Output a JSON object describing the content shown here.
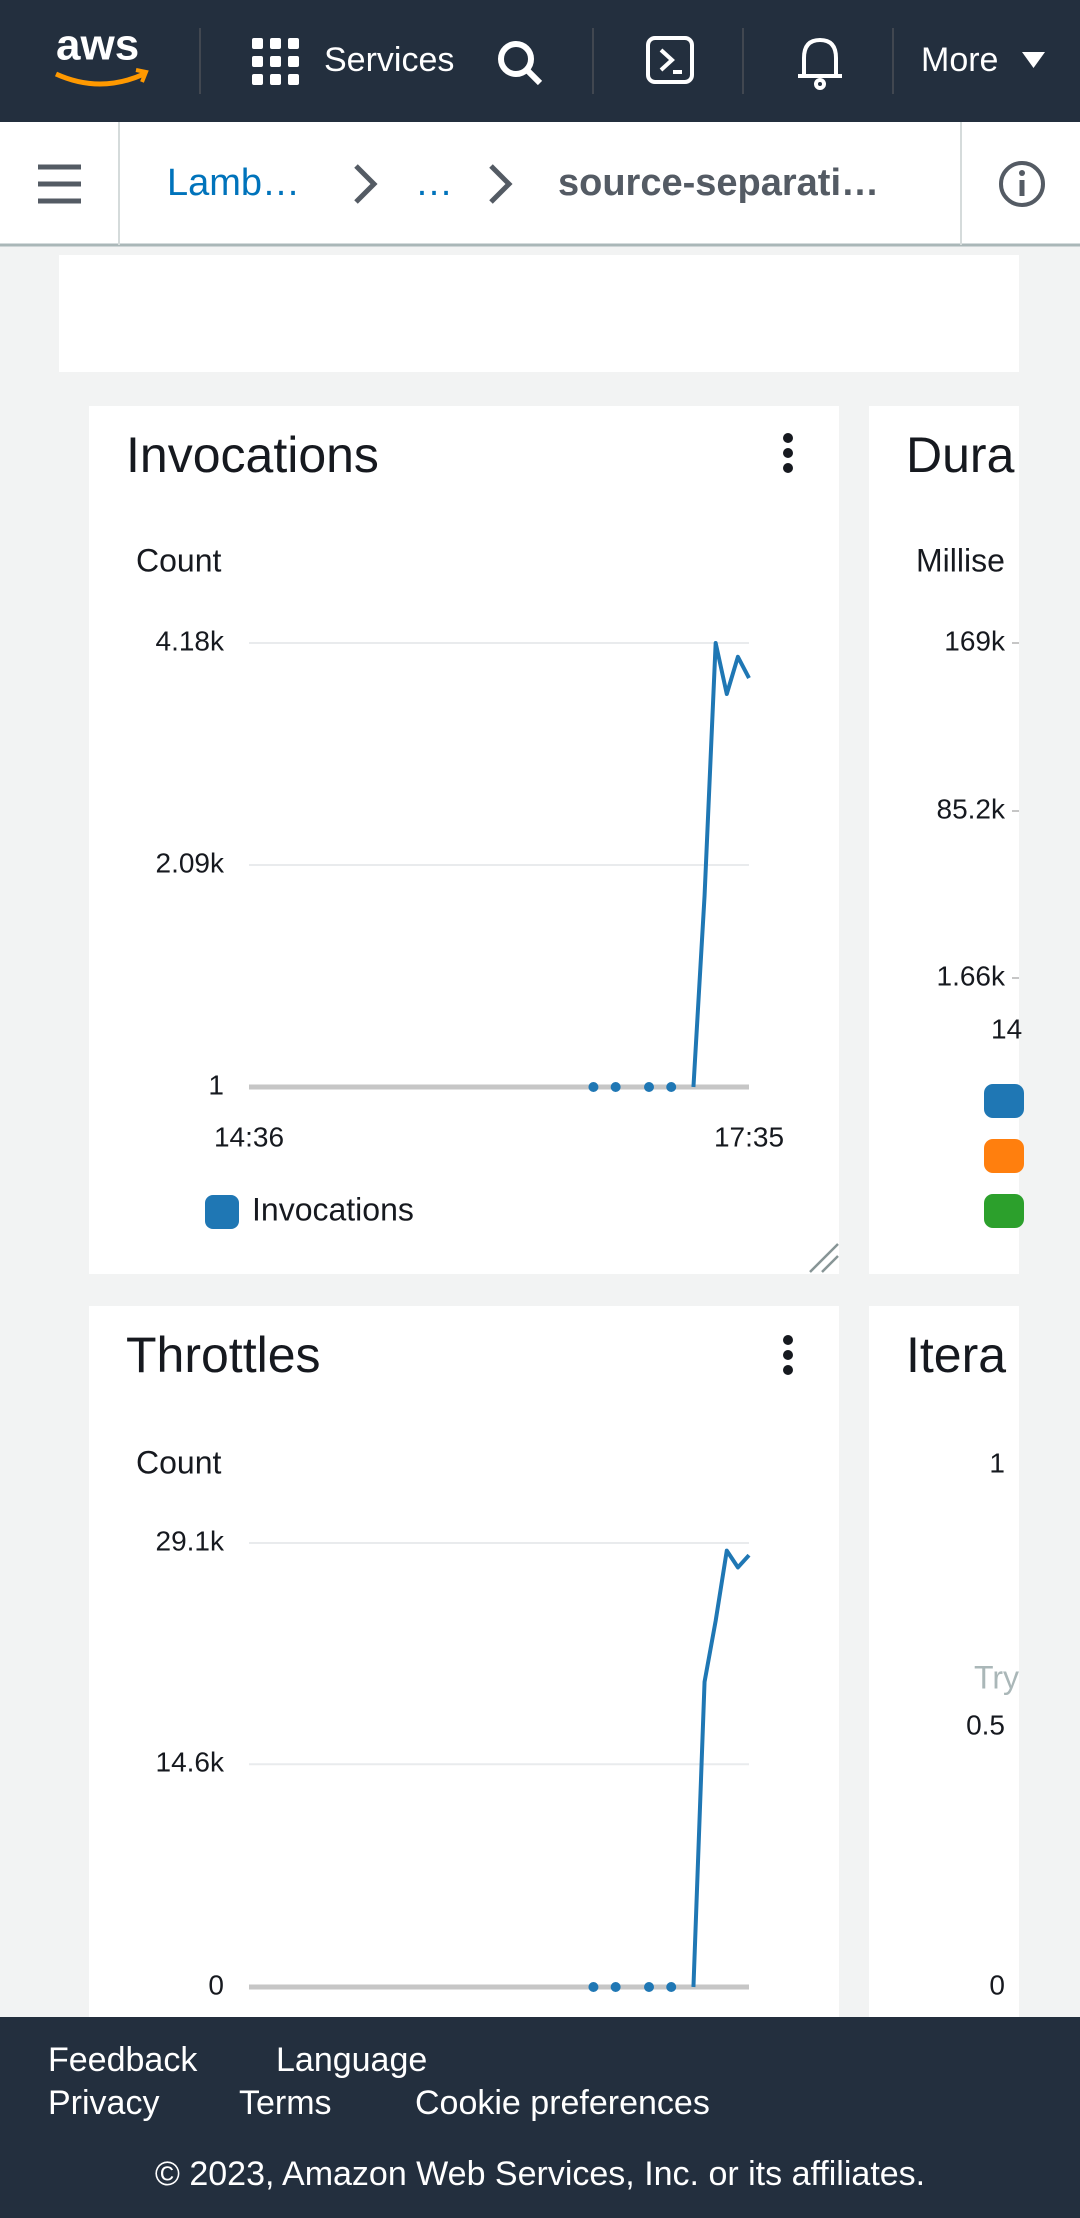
{
  "header": {
    "logo": "aws",
    "services": "Services",
    "more": "More"
  },
  "breadcrumbs": [
    "Lamb…",
    "…",
    "source-separati…"
  ],
  "chart_data": [
    {
      "type": "line",
      "title": "Invocations",
      "y_label": "Count",
      "categories": [
        "14:36",
        null,
        null,
        null,
        null,
        null,
        null,
        null,
        null,
        null,
        null,
        null,
        null,
        null,
        null,
        null,
        null,
        null,
        null,
        null,
        null,
        null,
        null,
        null,
        null,
        null,
        null,
        null,
        null,
        null,
        null,
        null,
        null,
        null,
        null,
        null,
        null,
        null,
        null,
        null,
        null,
        null,
        null,
        null,
        null,
        "17:35"
      ],
      "ylim": [
        1,
        4180
      ],
      "yticks": [
        1,
        {
          "value": 2090,
          "label": "2.09k"
        },
        {
          "value": 4180,
          "label": "4.18k"
        }
      ],
      "grid": true,
      "legend": true,
      "series": [
        {
          "name": "Invocations",
          "color": "#1f77b4",
          "values": [
            null,
            null,
            null,
            null,
            null,
            null,
            null,
            null,
            null,
            null,
            null,
            null,
            null,
            null,
            null,
            null,
            null,
            null,
            null,
            null,
            null,
            null,
            null,
            null,
            null,
            null,
            null,
            null,
            null,
            null,
            null,
            1,
            null,
            1,
            null,
            null,
            1,
            null,
            1,
            null,
            1,
            1800,
            4180,
            3700,
            4050,
            3850
          ]
        }
      ]
    },
    {
      "type": "line",
      "title": "Throttles",
      "y_label": "Count",
      "ylim": [
        0,
        29100
      ],
      "yticks": [
        0,
        {
          "value": 14600,
          "label": "14.6k"
        },
        {
          "value": 29100,
          "label": "29.1k"
        }
      ],
      "grid": true,
      "legend": false,
      "series": [
        {
          "color": "#1f77b4",
          "values": [
            null,
            null,
            null,
            null,
            null,
            null,
            null,
            null,
            null,
            null,
            null,
            null,
            null,
            null,
            null,
            null,
            null,
            null,
            null,
            null,
            null,
            null,
            null,
            null,
            null,
            null,
            null,
            null,
            null,
            null,
            null,
            0,
            null,
            0,
            null,
            null,
            0,
            null,
            0,
            null,
            0,
            20000,
            24000,
            28600,
            27500,
            28300
          ]
        }
      ]
    }
  ],
  "partial_widgets": [
    {
      "title": "Dura",
      "y_label": "Millise",
      "tick_labels": [
        "169k",
        "85.2k",
        "1.66k"
      ],
      "x_label": "14",
      "legend_colors": [
        "#1f77b4",
        "#ff7f0e",
        "#2ca02c"
      ]
    },
    {
      "title": "Itera",
      "tick_labels": [
        "1",
        "0.5",
        "0"
      ],
      "note": "Try"
    }
  ],
  "footer": {
    "links": [
      "Feedback",
      "Language",
      "Privacy",
      "Terms",
      "Cookie preferences"
    ],
    "copyright": "© 2023, Amazon Web Services, Inc. or its affiliates."
  }
}
